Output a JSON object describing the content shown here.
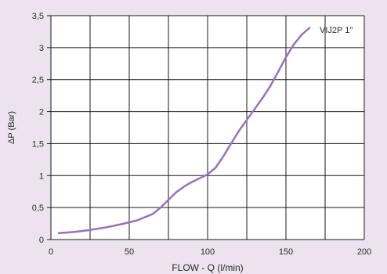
{
  "chart_data": {
    "type": "line",
    "title": "",
    "xlabel": "FLOW - Q (l/min)",
    "ylabel": "ΔP (Bar)",
    "xlim": [
      0,
      200
    ],
    "ylim": [
      0,
      3.5
    ],
    "x_ticks": [
      0,
      25,
      50,
      75,
      100,
      125,
      150,
      175,
      200
    ],
    "x_tick_labels": [
      "0",
      "",
      "50",
      "",
      "100",
      "",
      "150",
      "",
      "200"
    ],
    "y_ticks": [
      0,
      0.5,
      1,
      1.5,
      2,
      2.5,
      3,
      3.5
    ],
    "y_tick_labels": [
      "0",
      "0,5",
      "1",
      "1,5",
      "2",
      "2,5",
      "3",
      "3,5"
    ],
    "grid": true,
    "series": [
      {
        "name": "VIJ2P 1\"",
        "color": "#9a71b8",
        "x": [
          5,
          15,
          25,
          35,
          45,
          55,
          65,
          70,
          75,
          80,
          85,
          90,
          95,
          100,
          105,
          110,
          115,
          120,
          125,
          130,
          135,
          140,
          145,
          150,
          155,
          160,
          165
        ],
        "y": [
          0.1,
          0.12,
          0.15,
          0.19,
          0.24,
          0.3,
          0.4,
          0.5,
          0.62,
          0.74,
          0.83,
          0.9,
          0.96,
          1.02,
          1.12,
          1.3,
          1.5,
          1.7,
          1.87,
          2.04,
          2.21,
          2.4,
          2.62,
          2.85,
          3.05,
          3.2,
          3.31
        ]
      }
    ],
    "legend": {
      "label": "VIJ2P 1\"",
      "placement": "top-right"
    }
  }
}
